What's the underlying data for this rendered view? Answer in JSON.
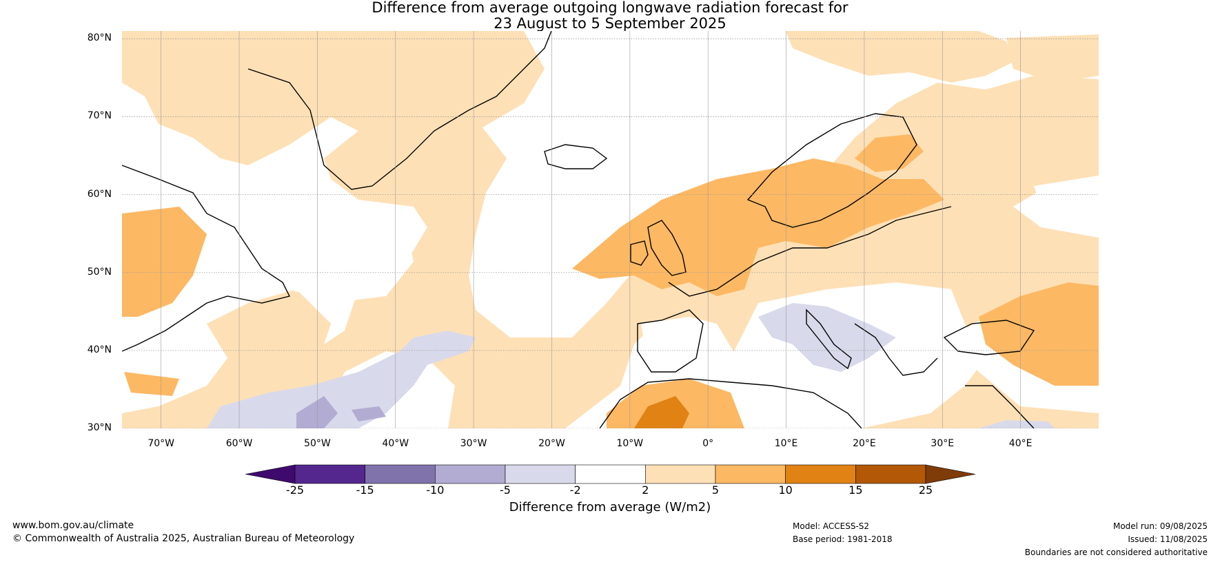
{
  "title": {
    "line1": "Difference from average outgoing longwave radiation forecast for",
    "line2": "23 August to 5 September 2025"
  },
  "map": {
    "lat_labels": [
      "80°N",
      "70°N",
      "60°N",
      "50°N",
      "40°N",
      "30°N"
    ],
    "lon_labels": [
      "70°W",
      "60°W",
      "50°W",
      "40°W",
      "30°W",
      "20°W",
      "10°W",
      "0°",
      "10°E",
      "20°E",
      "30°E",
      "40°E"
    ],
    "extent": {
      "lon": [
        -75,
        50
      ],
      "lat": [
        30,
        81
      ]
    }
  },
  "colorbar": {
    "title": "Difference from average (W/m2)",
    "ticks": [
      "-25",
      "-15",
      "-10",
      "-5",
      "-2",
      "2",
      "5",
      "10",
      "15",
      "25"
    ],
    "colors": [
      "#3f0a6e",
      "#54278f",
      "#8073ac",
      "#b2abd2",
      "#d8daeb",
      "#ffffff",
      "#fee0b6",
      "#fdb863",
      "#e08214",
      "#b35806",
      "#7f3b08"
    ]
  },
  "footer": {
    "site": "www.bom.gov.au/climate",
    "copyright": "© Commonwealth of Australia 2025, Australian Bureau of Meteorology",
    "model": "Model: ACCESS-S2",
    "base_period": "Base period: 1981-2018",
    "model_run": "Model run: 09/08/2025",
    "issued": "Issued: 11/08/2025",
    "disclaimer": "Boundaries are not considered authoritative"
  }
}
